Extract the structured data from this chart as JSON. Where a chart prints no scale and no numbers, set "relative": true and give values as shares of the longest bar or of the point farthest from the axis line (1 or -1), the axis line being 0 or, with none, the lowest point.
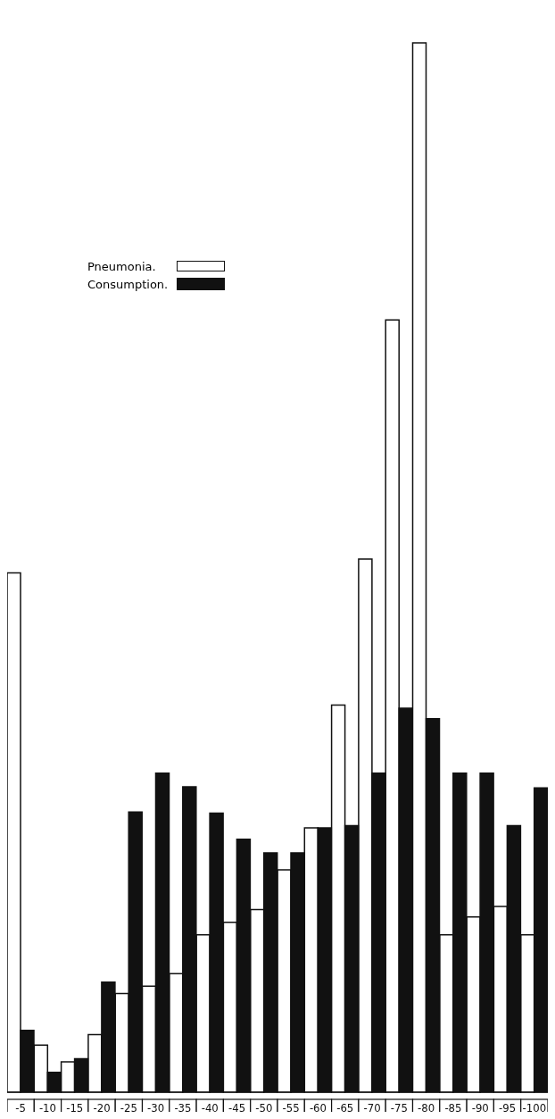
{
  "chart_data": {
    "type": "bar",
    "relative": true,
    "categories": [
      "-5",
      "-10",
      "-15",
      "-20",
      "-25",
      "-30",
      "-35",
      "-40",
      "-45",
      "-50",
      "-55",
      "-60",
      "-65",
      "-70",
      "-75",
      "-80",
      "-85",
      "-90",
      "-95",
      "-100"
    ],
    "series": [
      {
        "name": "Pneumonia.",
        "color": "#ffffff",
        "values": [
          0.495,
          0.045,
          0.029,
          0.055,
          0.094,
          0.101,
          0.113,
          0.15,
          0.162,
          0.174,
          0.212,
          0.252,
          0.369,
          0.508,
          0.736,
          1,
          0.15,
          0.167,
          0.177,
          0.15
        ]
      },
      {
        "name": "Consumption.",
        "color": "#111111",
        "values": [
          0.059,
          0.019,
          0.032,
          0.105,
          0.267,
          0.304,
          0.291,
          0.266,
          0.241,
          0.228,
          0.228,
          0.252,
          0.254,
          0.304,
          0.366,
          0.356,
          0.304,
          0.304,
          0.254,
          0.29
        ]
      }
    ],
    "legend": "top left",
    "grid": false
  }
}
